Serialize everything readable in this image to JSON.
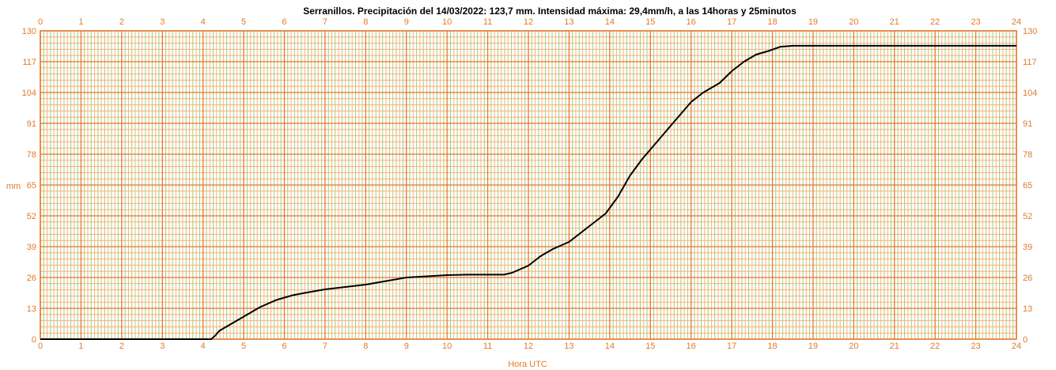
{
  "chart_data": {
    "type": "line",
    "title": "Serranillos. Precipitación del 14/03/2022: 123,7 mm. Intensidad máxima: 29,4mm/h, a las 14horas y 25minutos",
    "xlabel": "Hora UTC",
    "ylabel": "mm",
    "xlim": [
      0,
      24
    ],
    "ylim": [
      0,
      130
    ],
    "x_ticks": [
      "0",
      "1",
      "2",
      "3",
      "4",
      "5",
      "6",
      "7",
      "8",
      "9",
      "10",
      "11",
      "12",
      "13",
      "14",
      "15",
      "16",
      "17",
      "18",
      "19",
      "20",
      "21",
      "22",
      "23",
      "24"
    ],
    "y_ticks": [
      "0",
      "13",
      "26",
      "39",
      "52",
      "65",
      "78",
      "91",
      "104",
      "117",
      "130"
    ],
    "grid": true,
    "colors": {
      "grid_major": "#e8762c",
      "grid_minor": "#f2b27a",
      "grid_green": "#9ccf7a",
      "line": "#000000",
      "text": "#e07b2a"
    },
    "series": [
      {
        "x": [
          0,
          4.2,
          4.3,
          4.4,
          4.6,
          4.8,
          5.0,
          5.2,
          5.4,
          5.6,
          5.8,
          6.0,
          6.2,
          6.5,
          7.0,
          7.5,
          8.0,
          8.5,
          9.0,
          9.5,
          10.0,
          10.5,
          11.0,
          11.4,
          11.6,
          12.0,
          12.3,
          12.6,
          13.0,
          13.3,
          13.6,
          13.9,
          14.2,
          14.5,
          14.8,
          15.0,
          15.3,
          15.6,
          16.0,
          16.3,
          16.7,
          17.0,
          17.3,
          17.6,
          17.9,
          18.2,
          18.5,
          19.0,
          24.0
        ],
        "y": [
          0,
          0,
          1.5,
          3.5,
          5.5,
          7.5,
          9.5,
          11.5,
          13.5,
          15.0,
          16.5,
          17.5,
          18.5,
          19.5,
          21.0,
          22.0,
          23.0,
          24.5,
          26.0,
          26.5,
          27.0,
          27.2,
          27.2,
          27.2,
          28.0,
          31.0,
          35.0,
          38.0,
          41.0,
          45.0,
          49.0,
          53.0,
          60.0,
          69.0,
          76.0,
          80.0,
          86.0,
          92.0,
          100.0,
          104.0,
          108.0,
          113.0,
          117.0,
          120.0,
          121.5,
          123.3,
          123.7,
          123.7,
          123.7
        ]
      }
    ]
  }
}
